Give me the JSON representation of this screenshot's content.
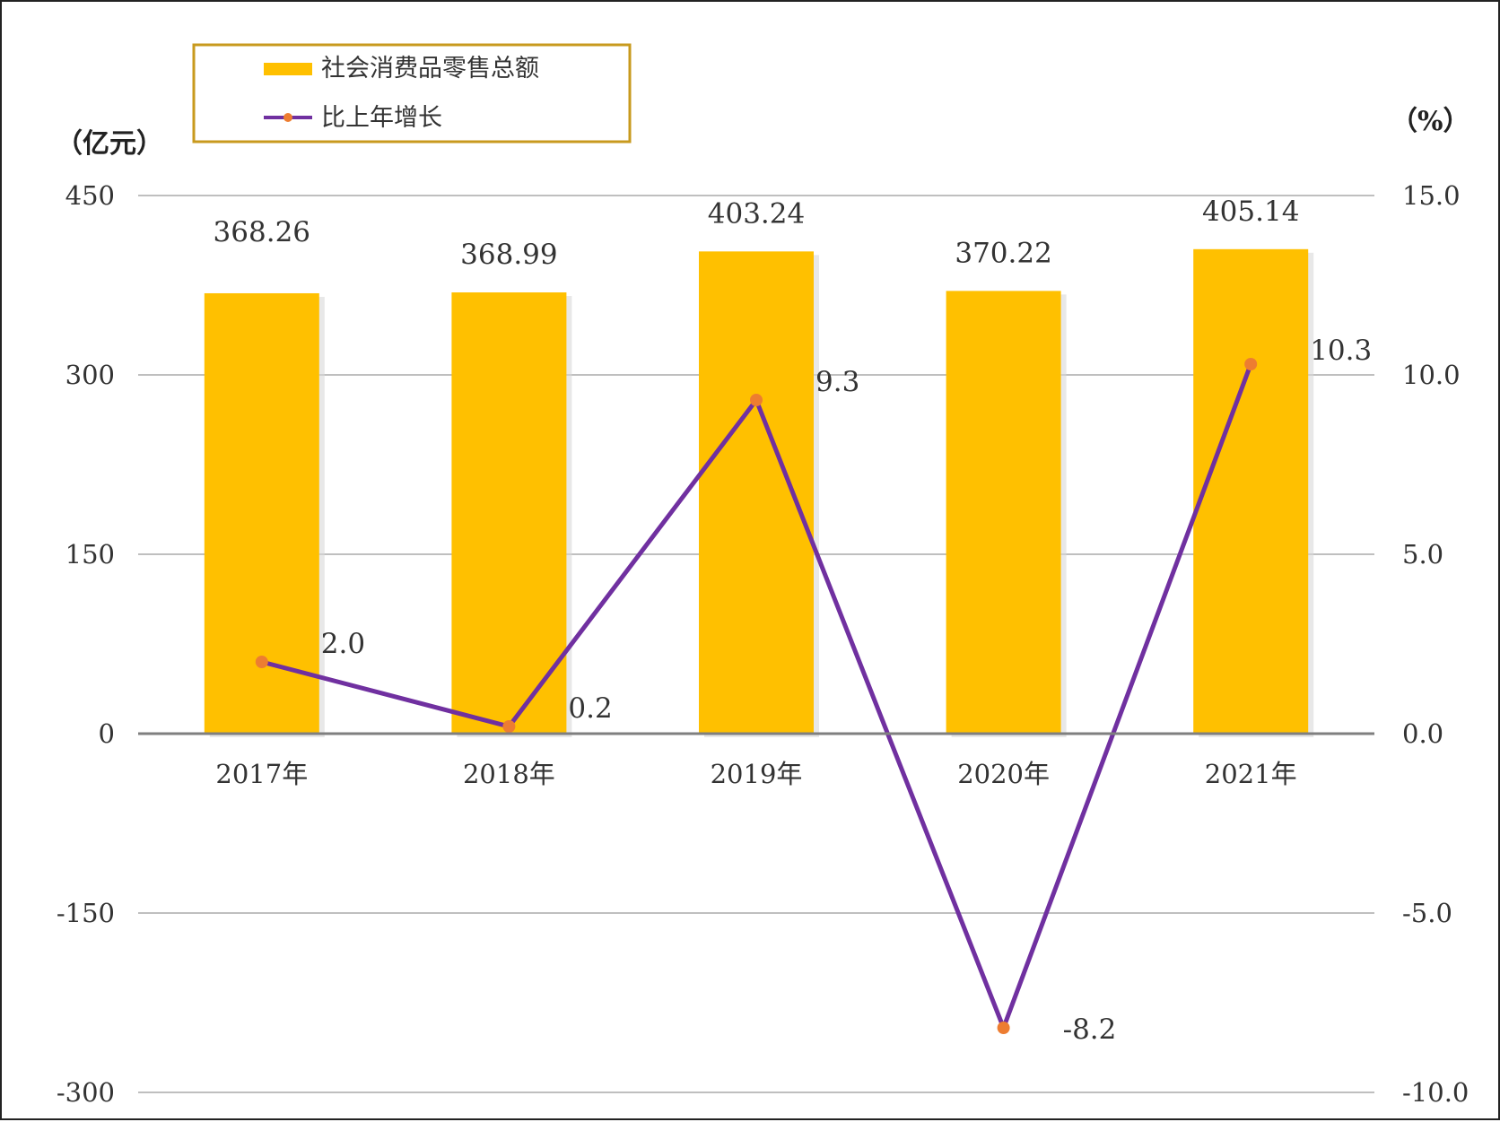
{
  "chart_data": {
    "type": "bar",
    "categories": [
      "2017年",
      "2018年",
      "2019年",
      "2020年",
      "2021年"
    ],
    "series": [
      {
        "name": "社会消费品零售总额",
        "type": "bar",
        "axis": "left",
        "color": "#FFC000",
        "values": [
          368.26,
          368.99,
          403.24,
          370.22,
          405.14
        ],
        "labels": [
          "368.26",
          "368.99",
          "403.24",
          "370.22",
          "405.14"
        ]
      },
      {
        "name": "比上年增长",
        "type": "line",
        "axis": "right",
        "color": "#7030A0",
        "marker_color": "#ED7D31",
        "values": [
          2.0,
          0.2,
          9.3,
          -8.2,
          10.3
        ],
        "labels": [
          "2.0",
          "0.2",
          "9.3",
          "-8.2",
          "10.3"
        ]
      }
    ],
    "left_axis": {
      "unit": "（亿元）",
      "ylim": [
        -300,
        450
      ],
      "ticks": [
        "450",
        "300",
        "150",
        "0",
        "-150",
        "-300"
      ]
    },
    "right_axis": {
      "unit": "（%）",
      "ylim": [
        -10.0,
        15.0
      ],
      "ticks": [
        "15.0",
        "10.0",
        "5.0",
        "0.0",
        "-5.0",
        "-10.0"
      ]
    },
    "legend_position": "top-left",
    "grid": true
  }
}
